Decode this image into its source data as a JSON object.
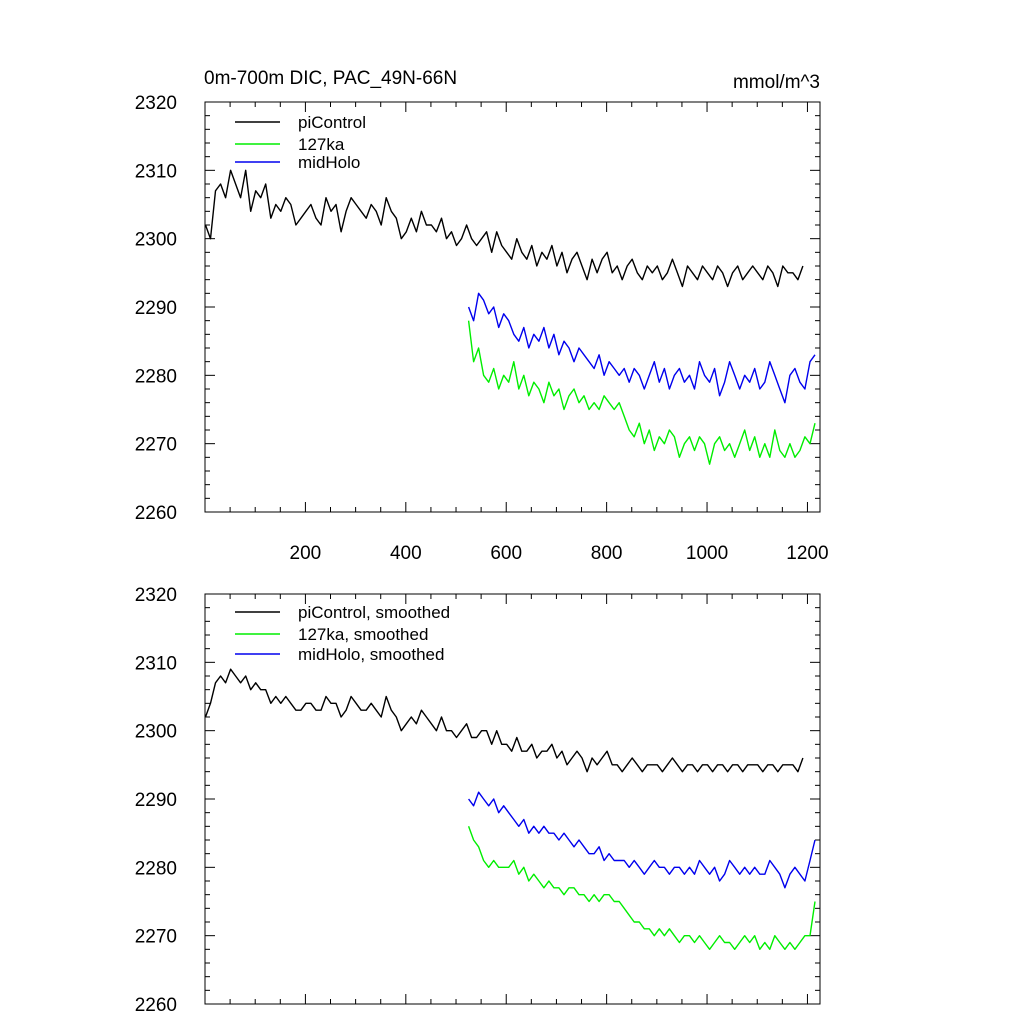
{
  "title_left": "0m-700m DIC, PAC_49N-66N",
  "title_right": "mmol/m^3",
  "colors": {
    "piControl": "#000000",
    "127ka": "#00ee00",
    "midHolo": "#0000ee"
  },
  "chart_data": [
    {
      "type": "line",
      "panel": "top",
      "title": "0m-700m DIC, PAC_49N-66N",
      "units": "mmol/m^3",
      "xlim": [
        0,
        1225
      ],
      "ylim": [
        2260,
        2320
      ],
      "xticks": [
        200,
        400,
        600,
        800,
        1000,
        1200
      ],
      "xtick_labels": [
        "200",
        "400",
        "600",
        "800",
        "1000",
        "1200"
      ],
      "yticks": [
        2260,
        2270,
        2280,
        2290,
        2300,
        2310,
        2320
      ],
      "ytick_labels": [
        "2260",
        "2270",
        "2280",
        "2290",
        "2300",
        "2310",
        "2320"
      ],
      "legend": [
        "piControl",
        "127ka",
        "midHolo"
      ],
      "legend_position": "top-left",
      "series": [
        {
          "name": "piControl",
          "color": "#000000",
          "x_start": 1,
          "x_step": 10,
          "values": [
            2302,
            2300,
            2307,
            2308,
            2306,
            2310,
            2308,
            2306,
            2310,
            2304,
            2307,
            2306,
            2308,
            2303,
            2305,
            2304,
            2306,
            2305,
            2302,
            2303,
            2304,
            2305,
            2303,
            2302,
            2306,
            2304,
            2305,
            2301,
            2304,
            2306,
            2305,
            2304,
            2303,
            2305,
            2304,
            2302,
            2306,
            2304,
            2303,
            2300,
            2301,
            2303,
            2301,
            2304,
            2302,
            2302,
            2301,
            2303,
            2300,
            2301,
            2299,
            2300,
            2302,
            2300,
            2299,
            2300,
            2301,
            2298,
            2301,
            2299,
            2298,
            2297,
            2300,
            2298,
            2297,
            2299,
            2296,
            2298,
            2297,
            2299,
            2296,
            2298,
            2295,
            2297,
            2298,
            2296,
            2294,
            2297,
            2295,
            2297,
            2298,
            2295,
            2296,
            2294,
            2296,
            2297,
            2295,
            2294,
            2296,
            2295,
            2296,
            2294,
            2295,
            2297,
            2295,
            2293,
            2296,
            2295,
            2294,
            2296,
            2295,
            2294,
            2296,
            2295,
            2293,
            2295,
            2296,
            2294,
            2295,
            2296,
            2295,
            2294,
            2296,
            2295,
            2293,
            2296,
            2295,
            2295,
            2294,
            2296
          ]
        },
        {
          "name": "127ka",
          "color": "#00ee00",
          "x_start": 525,
          "x_step": 10,
          "values": [
            2288,
            2282,
            2284,
            2280,
            2279,
            2281,
            2278,
            2280,
            2279,
            2282,
            2278,
            2280,
            2277,
            2279,
            2278,
            2276,
            2279,
            2277,
            2278,
            2275,
            2277,
            2278,
            2276,
            2277,
            2275,
            2276,
            2275,
            2277,
            2276,
            2275,
            2276,
            2274,
            2272,
            2271,
            2273,
            2270,
            2272,
            2269,
            2271,
            2270,
            2272,
            2271,
            2268,
            2270,
            2271,
            2269,
            2271,
            2270,
            2267,
            2270,
            2271,
            2269,
            2270,
            2268,
            2270,
            2272,
            2269,
            2271,
            2268,
            2270,
            2268,
            2272,
            2269,
            2268,
            2270,
            2268,
            2269,
            2271,
            2270,
            2273
          ]
        },
        {
          "name": "midHolo",
          "color": "#0000ee",
          "x_start": 525,
          "x_step": 10,
          "values": [
            2290,
            2288,
            2292,
            2291,
            2289,
            2290,
            2287,
            2289,
            2288,
            2286,
            2285,
            2287,
            2284,
            2286,
            2285,
            2287,
            2284,
            2286,
            2283,
            2285,
            2284,
            2282,
            2284,
            2283,
            2282,
            2281,
            2283,
            2280,
            2282,
            2281,
            2280,
            2281,
            2279,
            2281,
            2280,
            2278,
            2280,
            2282,
            2279,
            2281,
            2278,
            2280,
            2281,
            2279,
            2280,
            2278,
            2282,
            2280,
            2279,
            2281,
            2277,
            2279,
            2282,
            2280,
            2278,
            2280,
            2279,
            2281,
            2278,
            2279,
            2282,
            2280,
            2278,
            2276,
            2280,
            2281,
            2279,
            2278,
            2282,
            2283
          ]
        }
      ]
    },
    {
      "type": "line",
      "panel": "bottom",
      "xlim": [
        0,
        1225
      ],
      "ylim": [
        2260,
        2320
      ],
      "xticks": [
        200,
        400,
        600,
        800,
        1000,
        1200
      ],
      "yticks": [
        2260,
        2270,
        2280,
        2290,
        2300,
        2310,
        2320
      ],
      "ytick_labels": [
        "2260",
        "2270",
        "2280",
        "2290",
        "2300",
        "2310",
        "2320"
      ],
      "legend": [
        "piControl, smoothed",
        "127ka, smoothed",
        "midHolo, smoothed"
      ],
      "legend_position": "top-left",
      "series": [
        {
          "name": "piControl, smoothed",
          "color": "#000000",
          "x_start": 1,
          "x_step": 10,
          "values": [
            2302,
            2304,
            2307,
            2308,
            2307,
            2309,
            2308,
            2307,
            2308,
            2306,
            2307,
            2306,
            2306,
            2304,
            2305,
            2304,
            2305,
            2304,
            2303,
            2303,
            2304,
            2304,
            2303,
            2303,
            2305,
            2304,
            2304,
            2302,
            2303,
            2305,
            2304,
            2303,
            2303,
            2304,
            2303,
            2302,
            2305,
            2303,
            2302,
            2300,
            2301,
            2302,
            2301,
            2303,
            2302,
            2301,
            2300,
            2302,
            2300,
            2300,
            2299,
            2300,
            2301,
            2299,
            2299,
            2300,
            2300,
            2298,
            2300,
            2298,
            2298,
            2297,
            2299,
            2297,
            2297,
            2298,
            2296,
            2297,
            2297,
            2298,
            2296,
            2297,
            2295,
            2296,
            2297,
            2296,
            2294,
            2296,
            2295,
            2296,
            2297,
            2295,
            2295,
            2294,
            2295,
            2296,
            2295,
            2294,
            2295,
            2295,
            2295,
            2294,
            2295,
            2296,
            2295,
            2294,
            2295,
            2295,
            2294,
            2295,
            2295,
            2294,
            2295,
            2295,
            2294,
            2295,
            2295,
            2294,
            2295,
            2295,
            2295,
            2294,
            2295,
            2295,
            2294,
            2295,
            2295,
            2295,
            2294,
            2296
          ]
        },
        {
          "name": "127ka, smoothed",
          "color": "#00ee00",
          "x_start": 525,
          "x_step": 10,
          "values": [
            2286,
            2284,
            2283,
            2281,
            2280,
            2281,
            2280,
            2280,
            2280,
            2281,
            2279,
            2280,
            2278,
            2279,
            2278,
            2277,
            2278,
            2277,
            2277,
            2276,
            2277,
            2277,
            2276,
            2276,
            2275,
            2276,
            2275,
            2276,
            2276,
            2275,
            2275,
            2274,
            2273,
            2272,
            2272,
            2271,
            2271,
            2270,
            2271,
            2270,
            2271,
            2270,
            2269,
            2270,
            2270,
            2269,
            2270,
            2269,
            2268,
            2269,
            2270,
            2269,
            2269,
            2268,
            2269,
            2270,
            2269,
            2270,
            2268,
            2269,
            2268,
            2270,
            2269,
            2268,
            2269,
            2268,
            2269,
            2270,
            2270,
            2275
          ]
        },
        {
          "name": "midHolo, smoothed",
          "color": "#0000ee",
          "x_start": 525,
          "x_step": 10,
          "values": [
            2290,
            2289,
            2291,
            2290,
            2289,
            2290,
            2288,
            2289,
            2288,
            2287,
            2286,
            2287,
            2285,
            2286,
            2285,
            2286,
            2285,
            2285,
            2284,
            2285,
            2284,
            2283,
            2284,
            2283,
            2282,
            2282,
            2283,
            2281,
            2282,
            2281,
            2281,
            2281,
            2280,
            2281,
            2280,
            2279,
            2280,
            2281,
            2280,
            2280,
            2279,
            2280,
            2280,
            2279,
            2280,
            2279,
            2281,
            2280,
            2279,
            2280,
            2278,
            2279,
            2281,
            2280,
            2279,
            2280,
            2279,
            2280,
            2279,
            2279,
            2281,
            2280,
            2279,
            2277,
            2279,
            2280,
            2279,
            2278,
            2281,
            2284
          ]
        }
      ]
    }
  ]
}
